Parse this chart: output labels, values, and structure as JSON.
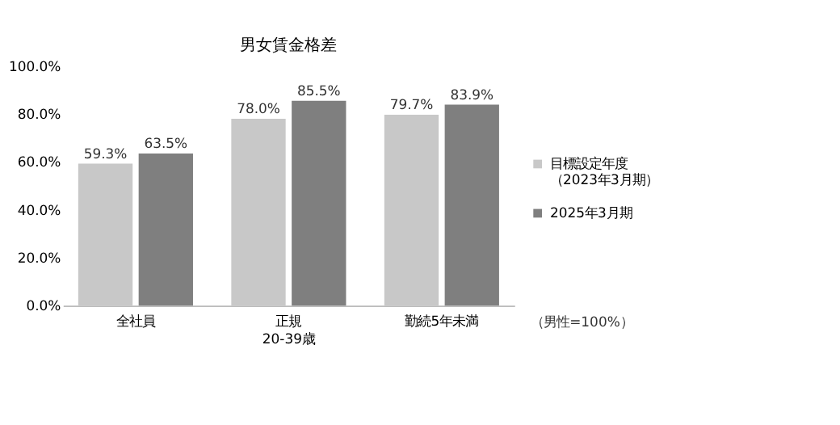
{
  "chart_data": {
    "type": "bar",
    "title": "男女賃金格差",
    "categories": [
      "全社員",
      "正規\n20-39歳",
      "勤続5年未満"
    ],
    "series": [
      {
        "name": "目標設定年度（2023年3月期）",
        "color": "#c8c8c8",
        "values": [
          59.3,
          78.0,
          79.7
        ],
        "value_labels": [
          "59.3%",
          "78.0%",
          "79.7%"
        ]
      },
      {
        "name": "2025年3月期",
        "color": "#7f7f7f",
        "values": [
          63.5,
          85.5,
          83.9
        ],
        "value_labels": [
          "63.5%",
          "85.5%",
          "83.9%"
        ]
      }
    ],
    "ylim": [
      0,
      100
    ],
    "yticks": [
      {
        "value": 0,
        "label": "0.0%"
      },
      {
        "value": 20,
        "label": "20.0%"
      },
      {
        "value": 40,
        "label": "40.0%"
      },
      {
        "value": 60,
        "label": "60.0%"
      },
      {
        "value": 80,
        "label": "80.0%"
      },
      {
        "value": 100,
        "label": "100.0%"
      }
    ],
    "grid": false,
    "legend": "right",
    "annotations": [
      "（男性=100%）"
    ]
  }
}
